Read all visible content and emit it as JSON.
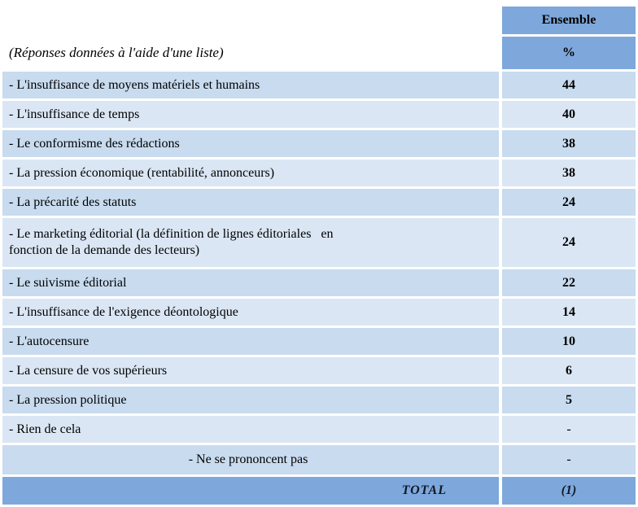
{
  "table": {
    "header": {
      "col_label": "Ensemble",
      "unit_label": "%",
      "left_caption": "(Réponses données à l'aide d'une liste)"
    },
    "rows": [
      {
        "label": "- L'insuffisance de moyens matériels et humains",
        "value": "44"
      },
      {
        "label": "- L'insuffisance de temps",
        "value": "40"
      },
      {
        "label": "- Le conformisme des rédactions",
        "value": "38"
      },
      {
        "label": "- La pression économique (rentabilité, annonceurs)",
        "value": "38"
      },
      {
        "label": "- La précarité des statuts",
        "value": "24"
      },
      {
        "label": "- Le marketing éditorial (la définition de lignes éditoriales   en\nfonction de la demande des lecteurs)",
        "value": "24",
        "tall": true
      },
      {
        "label": "- Le suivisme éditorial",
        "value": "22"
      },
      {
        "label": "- L'insuffisance de l'exigence déontologique",
        "value": "14"
      },
      {
        "label": "- L'autocensure",
        "value": "10"
      },
      {
        "label": "- La censure de vos supérieurs",
        "value": "6"
      },
      {
        "label": "- La pression politique",
        "value": "5"
      },
      {
        "label": "- Rien de cela",
        "value": "-"
      },
      {
        "label": "- Ne se prononcent pas",
        "value": "-",
        "centered": true
      }
    ],
    "footer": {
      "label": "TOTAL",
      "value": "(1)"
    },
    "colors": {
      "header_blue": "#7EA8DB",
      "band_dark": "#C8DBEF",
      "band_light": "#DAE6F4",
      "total_text": "#101828",
      "text": "#000000",
      "background": "#FFFFFF"
    }
  }
}
